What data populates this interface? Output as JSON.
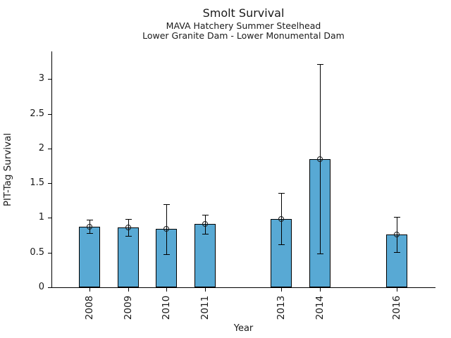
{
  "chart_data": {
    "type": "bar",
    "title": "Smolt Survival",
    "subtitle1": "MAVA Hatchery Summer Steelhead",
    "subtitle2": "Lower Granite Dam - Lower Monumental Dam",
    "xlabel": "Year",
    "ylabel": "PIT-Tag Survival",
    "categories": [
      "2008",
      "2009",
      "2010",
      "2011",
      "2013",
      "2014",
      "2016"
    ],
    "x": [
      2008,
      2009,
      2010,
      2011,
      2013,
      2014,
      2016
    ],
    "values": [
      0.87,
      0.86,
      0.84,
      0.91,
      0.98,
      1.85,
      0.76
    ],
    "error_low": [
      0.78,
      0.74,
      0.48,
      0.77,
      0.62,
      0.49,
      0.51
    ],
    "error_high": [
      0.97,
      0.98,
      1.2,
      1.05,
      1.36,
      3.22,
      1.02
    ],
    "yticks": [
      0,
      0.5,
      1,
      1.5,
      2,
      2.5,
      3
    ],
    "ytick_labels": [
      "0",
      "0.5",
      "1",
      "1.5",
      "2",
      "2.5",
      "3"
    ],
    "ylim": [
      0,
      3.4
    ],
    "xlim": [
      2007,
      2017
    ],
    "bar_width_years": 0.55,
    "bar_color": "#58A9D4",
    "bar_edge_color": "#000000",
    "error_color": "#000000",
    "marker": "open-circle",
    "grid": false,
    "legend": null
  }
}
